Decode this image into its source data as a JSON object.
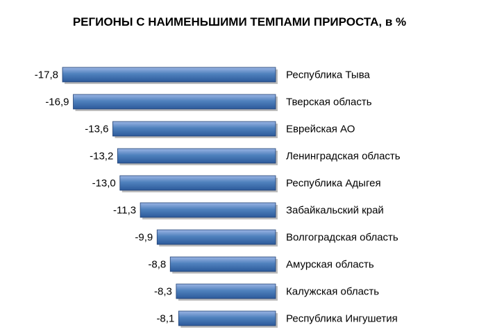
{
  "chart_data": {
    "type": "bar",
    "orientation": "horizontal",
    "title": "РЕГИОНЫ С НАИМЕНЬШИМИ ТЕМПАМИ ПРИРОСТА, в %",
    "categories": [
      "Республика Тыва",
      "Тверская область",
      "Еврейская АО",
      "Ленинградская область",
      "Республика Адыгея",
      "Забайкальский край",
      "Волгоградская область",
      "Амурская область",
      "Калужская область",
      "Республика Ингушетия"
    ],
    "values": [
      -17.8,
      -16.9,
      -13.6,
      -13.2,
      -13.0,
      -11.3,
      -9.9,
      -8.8,
      -8.3,
      -8.1
    ],
    "value_labels": [
      "-17,8",
      "-16,9",
      "-13,6",
      "-13,2",
      "-13,0",
      "-11,3",
      "-9,9",
      "-8,8",
      "-8,3",
      "-8,1"
    ],
    "xlim": [
      -17.8,
      0
    ],
    "grid": false,
    "legend": "none",
    "colors": {
      "bar_top": "#9bb5e4",
      "bar_mid": "#4f81bd",
      "bar_bottom": "#2c5a9a",
      "bar_stroke": "#1f3f72",
      "shadow": "#bdbdbd"
    }
  }
}
